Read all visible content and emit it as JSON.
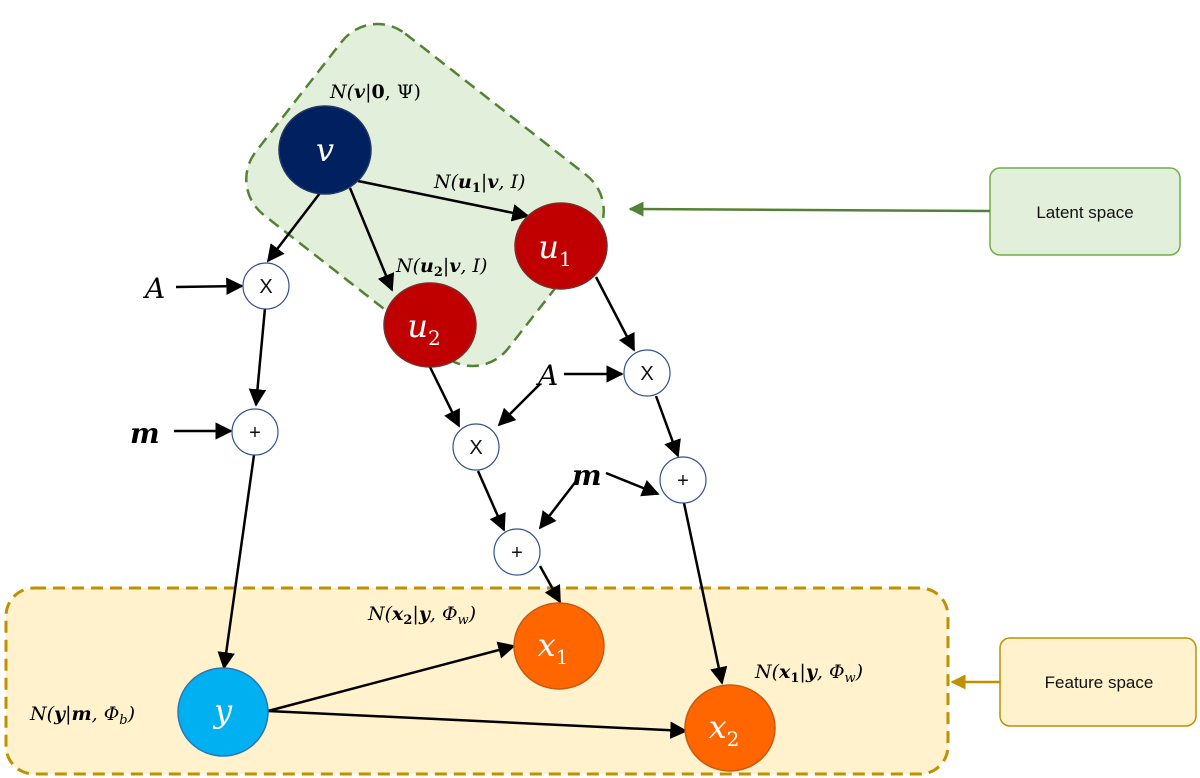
{
  "legend": {
    "latent_label": "Latent space",
    "feature_label": "Feature space",
    "latent_fill": "#e2efda",
    "latent_stroke": "#548235",
    "feature_fill": "#fff2cc",
    "feature_stroke": "#bf9000"
  },
  "nodes": {
    "v": {
      "label": "v",
      "color": "#002060"
    },
    "u1": {
      "label": "u",
      "sub": "1",
      "color": "#c00000"
    },
    "u2": {
      "label": "u",
      "sub": "2",
      "color": "#c00000"
    },
    "y": {
      "label": "y",
      "color": "#00b0f0"
    },
    "x1": {
      "label": "x",
      "sub": "1",
      "color": "#ff6600"
    },
    "x2": {
      "label": "x",
      "sub": "2",
      "color": "#ff6600"
    }
  },
  "operators": {
    "multiply": "X",
    "add": "+"
  },
  "inputs": {
    "A": "A",
    "m": "m"
  },
  "distributions": {
    "v": {
      "prefix": "N(",
      "var": "v",
      "bar": "|",
      "given": "0",
      "rest": ", Ψ)"
    },
    "u1": {
      "prefix": "N(",
      "var": "u",
      "sub": "1",
      "bar": "|",
      "given": "v",
      "rest": ", I)"
    },
    "u2": {
      "prefix": "N(",
      "var": "u",
      "sub": "2",
      "bar": "|",
      "given": "v",
      "rest": ", I)"
    },
    "y": {
      "prefix": "N(",
      "var": "y",
      "bar": "|",
      "given": "m",
      "rest": ", Φ",
      "rest_sub": "b",
      "close": ")"
    },
    "x1": {
      "prefix": "N(",
      "var": "x",
      "sub": "2",
      "bar": "|",
      "given": "y",
      "rest": ", Φ",
      "rest_sub": "w",
      "close": ")"
    },
    "x2": {
      "prefix": "N(",
      "var": "x",
      "sub": "1",
      "bar": "|",
      "given": "y",
      "rest": ", Φ",
      "rest_sub": "w",
      "close": ")"
    }
  }
}
